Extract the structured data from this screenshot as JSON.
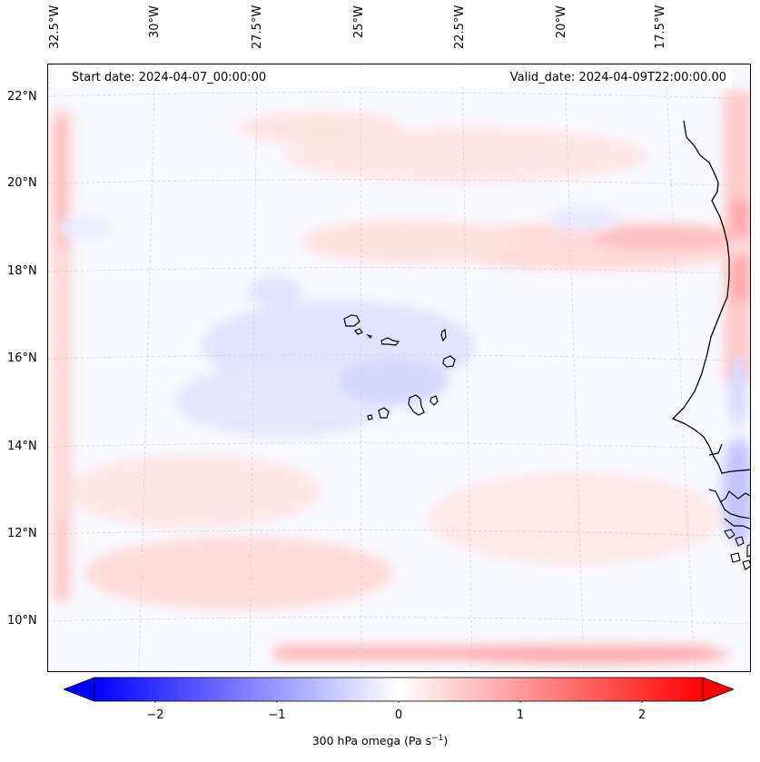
{
  "header": {
    "start_date": "Start date: 2024-04-07_00:00:00",
    "valid_date": "Valid_date: 2024-04-09T22:00:00.00"
  },
  "axes": {
    "lon_labels": [
      "32.5°W",
      "30°W",
      "27.5°W",
      "25°W",
      "22.5°W",
      "20°W",
      "17.5°W"
    ],
    "lat_labels": [
      "22°N",
      "20°N",
      "18°N",
      "16°N",
      "14°N",
      "12°N",
      "10°N"
    ],
    "gridlines": true
  },
  "colorbar": {
    "title_main": "300 hPa omega (Pa s",
    "title_exp": "−1",
    "title_close": ")",
    "tick_labels": [
      "−2",
      "−1",
      "0",
      "1",
      "2"
    ],
    "range": [
      -2.6,
      2.6
    ],
    "colormap": "bwr",
    "extend": "both",
    "negative_color": "#0000ff",
    "positive_color": "#ff0000"
  },
  "map": {
    "field": "300 hPa omega",
    "coastlines": true,
    "land_region": "West Africa coast (Senegal, Gambia)",
    "islands": "Cape Verde"
  }
}
